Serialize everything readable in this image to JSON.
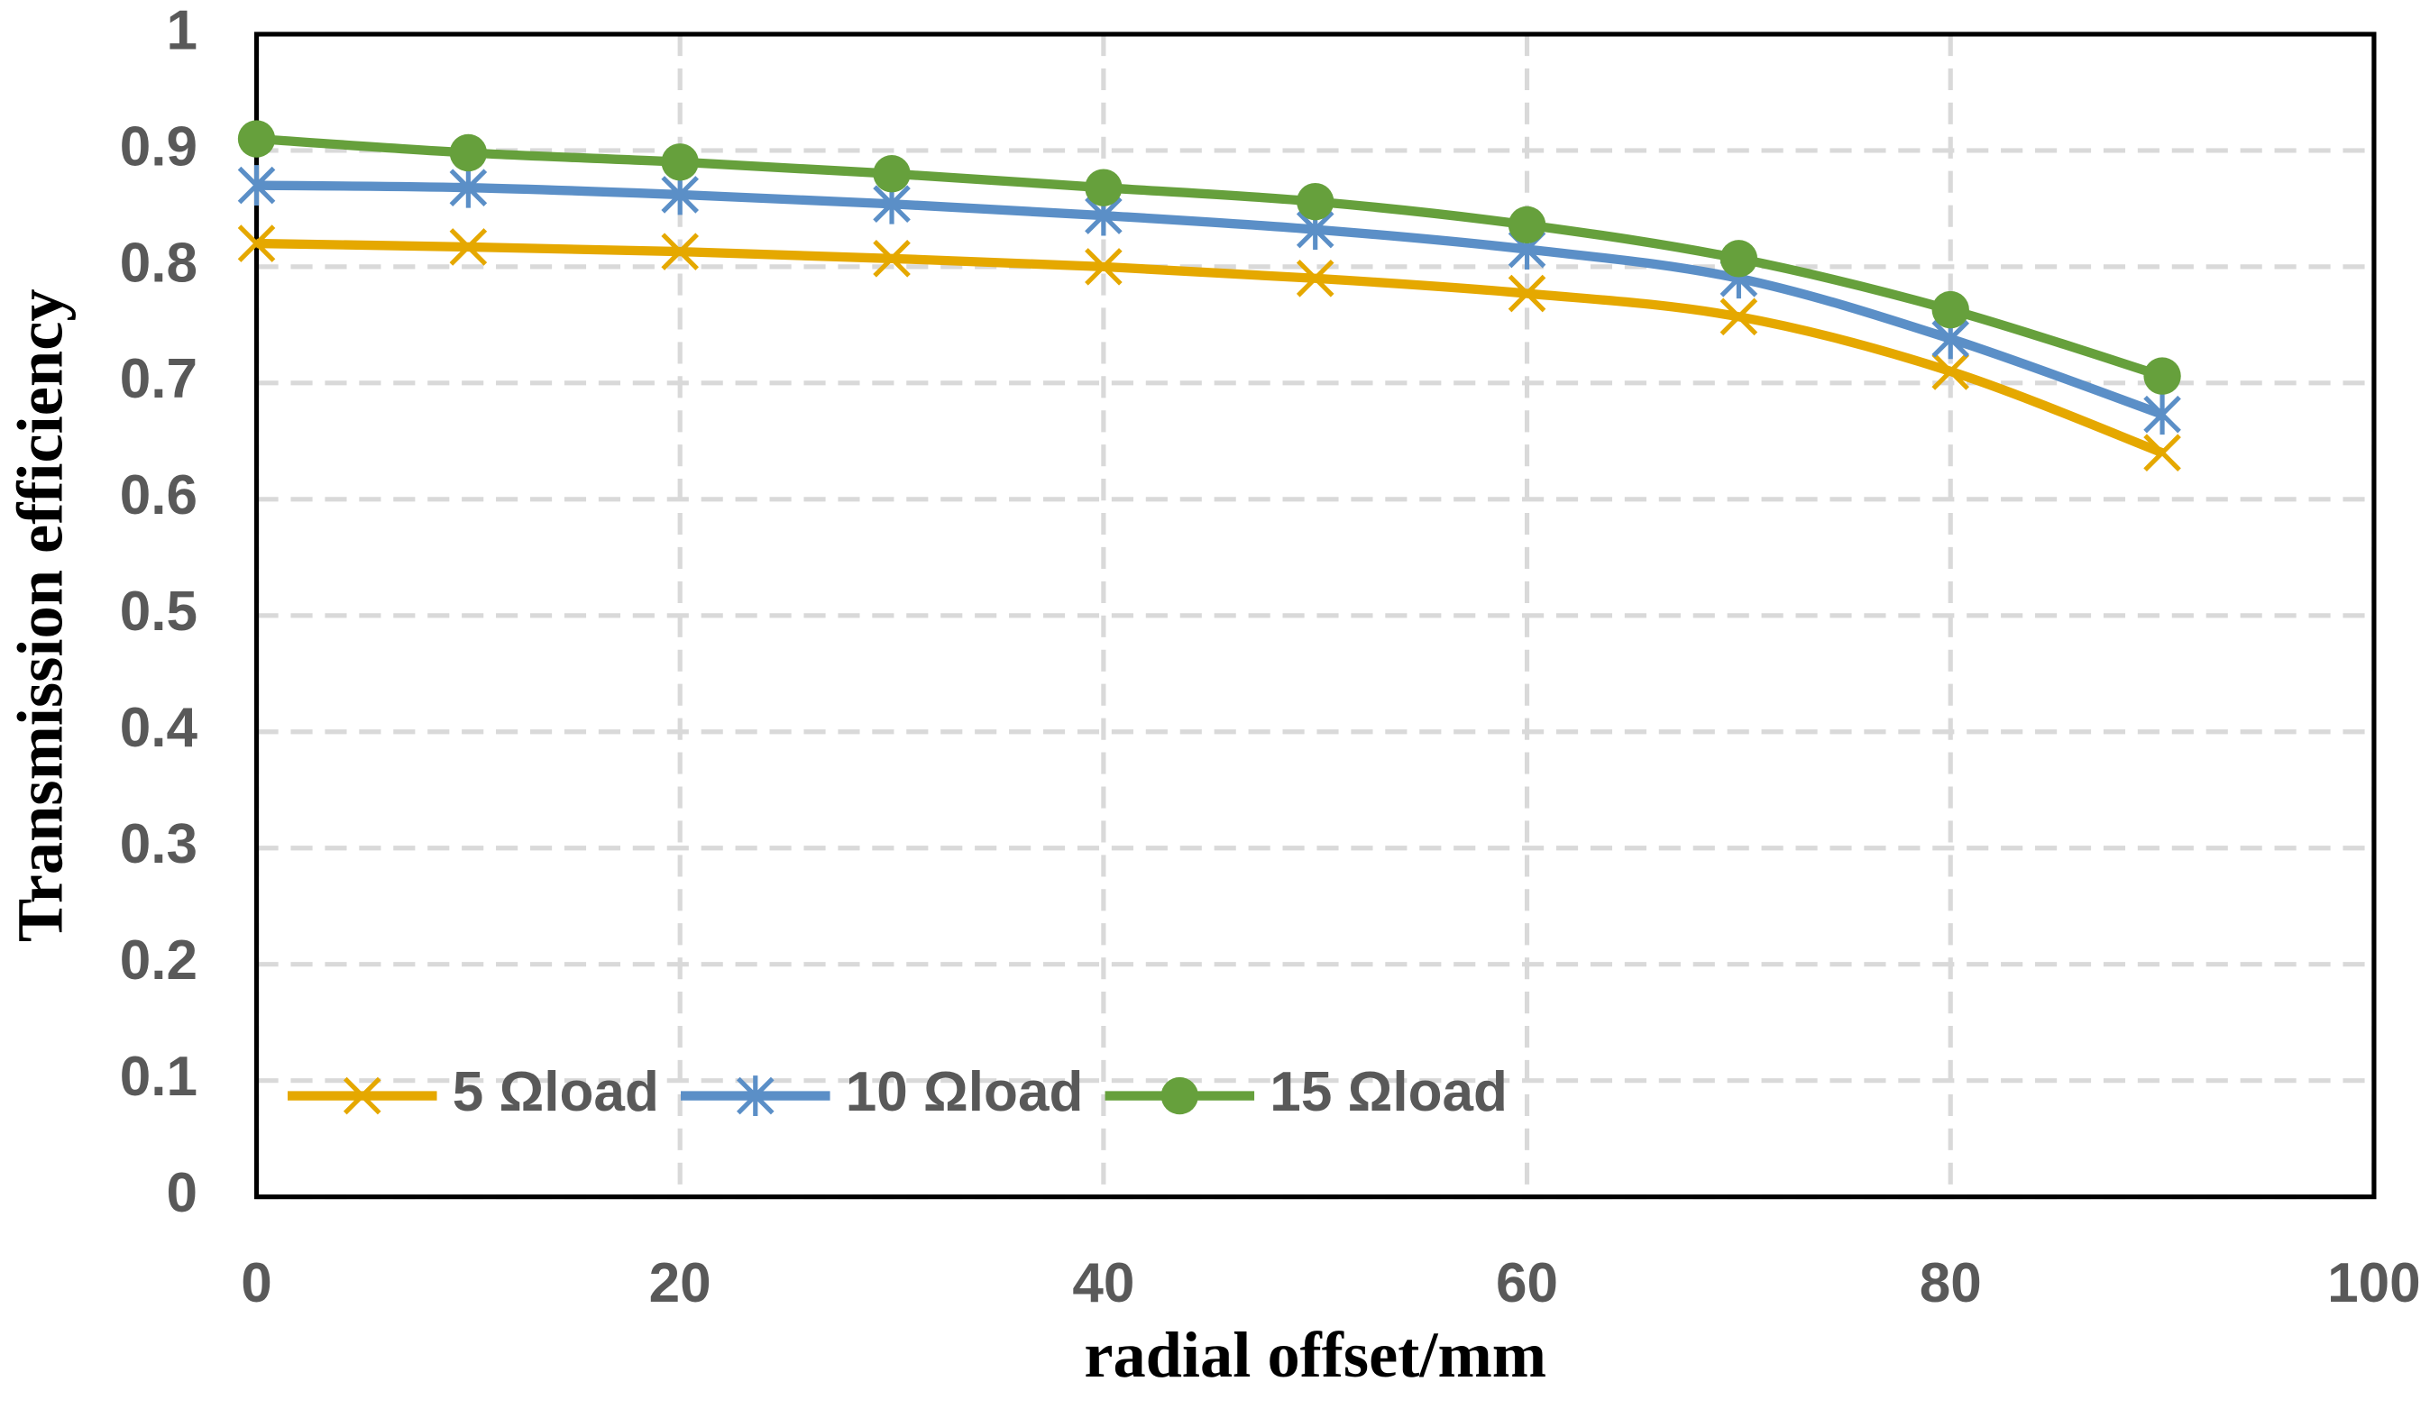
{
  "chart_data": {
    "type": "line",
    "x_label": "radial offset/mm",
    "y_label": "Transmission efficiency",
    "x": [
      0,
      10,
      20,
      30,
      40,
      50,
      60,
      70,
      80,
      90
    ],
    "series": [
      {
        "name": "5 Ωload",
        "color": "#e5a800",
        "marker": "x",
        "values": [
          0.82,
          0.817,
          0.813,
          0.807,
          0.8,
          0.79,
          0.777,
          0.757,
          0.71,
          0.64
        ]
      },
      {
        "name": "10 Ωload",
        "color": "#5b8fc7",
        "marker": "asterisk",
        "values": [
          0.87,
          0.868,
          0.862,
          0.854,
          0.844,
          0.832,
          0.815,
          0.79,
          0.738,
          0.673
        ]
      },
      {
        "name": "15 Ωload",
        "color": "#66a03c",
        "marker": "circle",
        "values": [
          0.91,
          0.898,
          0.89,
          0.88,
          0.868,
          0.856,
          0.836,
          0.807,
          0.763,
          0.706
        ]
      }
    ],
    "xlim": [
      0,
      100
    ],
    "xticks": [
      0,
      20,
      40,
      60,
      80,
      100
    ],
    "ylim": [
      0,
      1
    ],
    "yticks": [
      0,
      0.1,
      0.2,
      0.3,
      0.4,
      0.5,
      0.6,
      0.7,
      0.8,
      0.9,
      1
    ],
    "grid": true,
    "legend": "lower left"
  }
}
